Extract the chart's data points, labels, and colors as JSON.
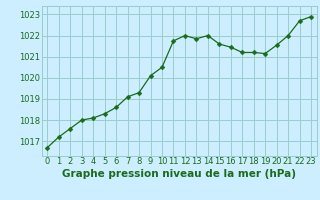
{
  "x": [
    0,
    1,
    2,
    3,
    4,
    5,
    6,
    7,
    8,
    9,
    10,
    11,
    12,
    13,
    14,
    15,
    16,
    17,
    18,
    19,
    20,
    21,
    22,
    23
  ],
  "y": [
    1016.7,
    1017.2,
    1017.6,
    1018.0,
    1018.1,
    1018.3,
    1018.6,
    1019.1,
    1019.3,
    1020.1,
    1020.5,
    1021.75,
    1022.0,
    1021.85,
    1022.0,
    1021.6,
    1021.45,
    1021.2,
    1021.2,
    1021.15,
    1021.55,
    1022.0,
    1022.7,
    1022.9
  ],
  "line_color": "#1a6b1a",
  "marker": "D",
  "markersize": 2.5,
  "linewidth": 0.9,
  "bg_color": "#cceeff",
  "grid_color": "#99cccc",
  "xlabel": "Graphe pression niveau de la mer (hPa)",
  "xlabel_fontsize": 7.5,
  "xlabel_color": "#1a6b1a",
  "tick_fontsize": 6.0,
  "tick_color": "#1a6b1a",
  "ylim": [
    1016.3,
    1023.4
  ],
  "yticks": [
    1017,
    1018,
    1019,
    1020,
    1021,
    1022,
    1023
  ],
  "xlim": [
    -0.5,
    23.5
  ],
  "xticks": [
    0,
    1,
    2,
    3,
    4,
    5,
    6,
    7,
    8,
    9,
    10,
    11,
    12,
    13,
    14,
    15,
    16,
    17,
    18,
    19,
    20,
    21,
    22,
    23
  ]
}
